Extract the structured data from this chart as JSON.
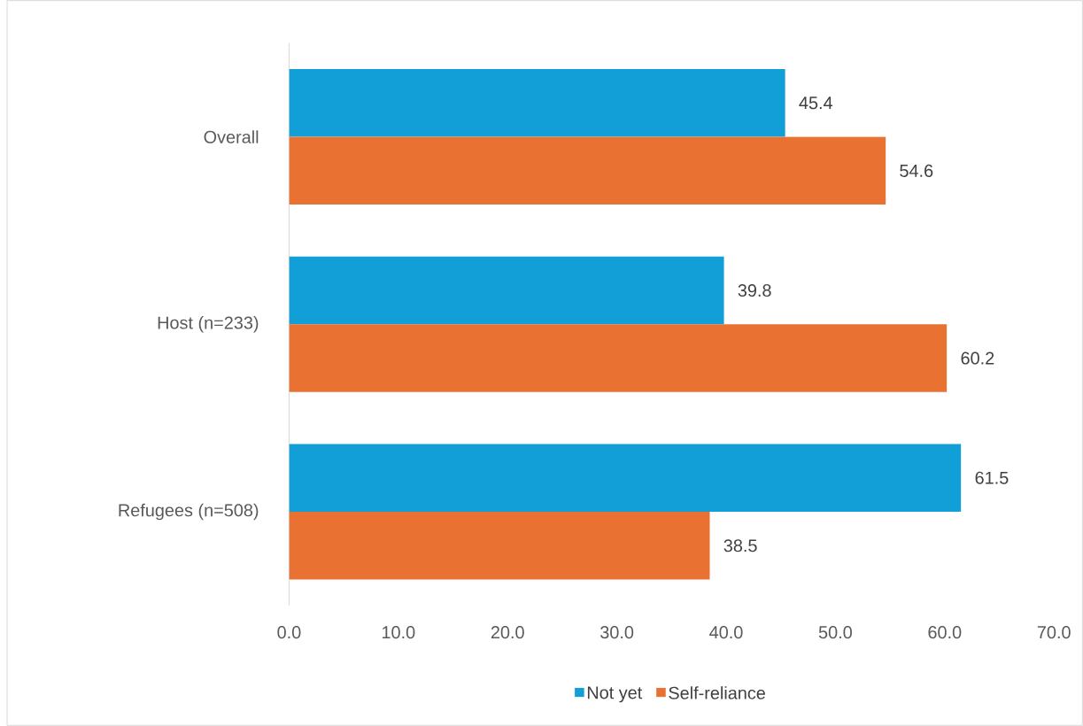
{
  "chart_data": {
    "type": "bar",
    "orientation": "horizontal",
    "categories": [
      "Overall",
      "Host (n=233)",
      "Refugees (n=508)"
    ],
    "series": [
      {
        "name": "Not yet",
        "color": "#129fd7",
        "values": [
          45.4,
          39.8,
          61.5
        ]
      },
      {
        "name": "Self-reliance",
        "color": "#e97132",
        "values": [
          54.6,
          60.2,
          38.5
        ]
      }
    ],
    "xlim": [
      0,
      70
    ],
    "xticks": [
      {
        "value": 0,
        "label": "0.0"
      },
      {
        "value": 10,
        "label": "10.0"
      },
      {
        "value": 20,
        "label": "20.0"
      },
      {
        "value": 30,
        "label": "30.0"
      },
      {
        "value": 40,
        "label": "40.0"
      },
      {
        "value": 50,
        "label": "50.0"
      },
      {
        "value": 60,
        "label": "60.0"
      },
      {
        "value": 70,
        "label": "70.0"
      }
    ],
    "data_labels": true,
    "grid": false,
    "legend": "bottom"
  }
}
